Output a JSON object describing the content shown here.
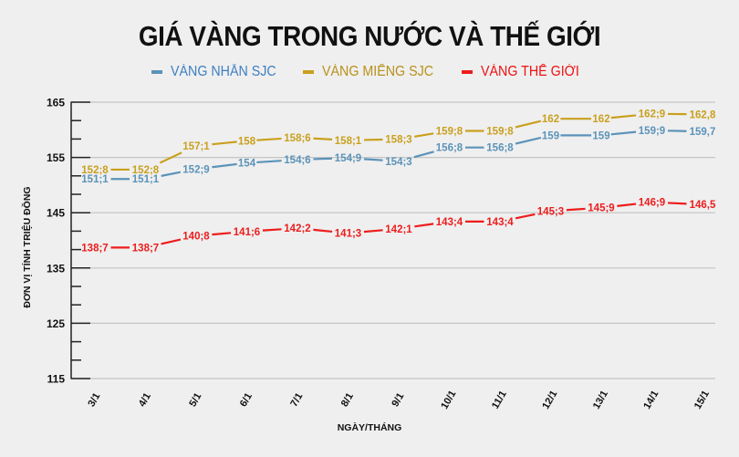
{
  "title": "GIÁ VÀNG TRONG NƯỚC VÀ THẾ GIỚI",
  "legend": [
    {
      "label": "VÀNG NHẪN SJC",
      "color": "#5b93b9",
      "text_color": "#3d7fc1"
    },
    {
      "label": "VÀNG MIẾNG SJC",
      "color": "#c9a01e",
      "text_color": "#b8911a"
    },
    {
      "label": "VÀNG THẾ GIỚI",
      "color": "#ee1c1c",
      "text_color": "#ee1111"
    }
  ],
  "axes": {
    "ylabel": "ĐƠN VỊ TÍNH TRIỆU ĐỒNG",
    "xlabel": "NGÀY/THÁNG"
  },
  "chart_data": {
    "type": "line",
    "title": "GIÁ VÀNG TRONG NƯỚC VÀ THẾ GIỚI",
    "xlabel": "NGÀY/THÁNG",
    "ylabel": "ĐƠN VỊ TÍNH TRIỆU ĐỒNG",
    "categories": [
      "3/1",
      "4/1",
      "5/1",
      "6/1",
      "7/1",
      "8/1",
      "9/1",
      "10/1",
      "11/1",
      "12/1",
      "13/1",
      "14/1",
      "15/1"
    ],
    "ylim": [
      115,
      165
    ],
    "yticks": [
      115,
      125,
      135,
      145,
      155,
      165
    ],
    "grid": true,
    "legend_position": "top",
    "series": [
      {
        "name": "VÀNG NHẪN SJC",
        "color": "#5b93b9",
        "values": [
          151.1,
          151.1,
          152.9,
          154,
          154.6,
          154.9,
          154.3,
          156.8,
          156.8,
          159,
          159,
          159.9,
          159.7
        ],
        "labels": [
          "151;1",
          "151;1",
          "152;9",
          "154",
          "154;6",
          "154;9",
          "154;3",
          "156;8",
          "156;8",
          "159",
          "159",
          "159;9",
          "159,7"
        ]
      },
      {
        "name": "VÀNG MIẾNG SJC",
        "color": "#c9a01e",
        "values": [
          152.8,
          152.8,
          157.1,
          158,
          158.6,
          158.1,
          158.3,
          159.8,
          159.8,
          162,
          162,
          162.9,
          162.8
        ],
        "labels": [
          "152;8",
          "152;8",
          "157;1",
          "158",
          "158;6",
          "158;1",
          "158;3",
          "159;8",
          "159;8",
          "162",
          "162",
          "162;9",
          "162,8"
        ]
      },
      {
        "name": "VÀNG THẾ GIỚI",
        "color": "#ee1c1c",
        "values": [
          138.7,
          138.7,
          140.8,
          141.6,
          142.2,
          141.3,
          142.1,
          143.4,
          143.4,
          145.3,
          145.9,
          146.9,
          146.5
        ],
        "labels": [
          "138;7",
          "138;7",
          "140;8",
          "141;6",
          "142;2",
          "141;3",
          "142;1",
          "143;4",
          "143;4",
          "145;3",
          "145;9",
          "146;9",
          "146,5"
        ]
      }
    ]
  }
}
